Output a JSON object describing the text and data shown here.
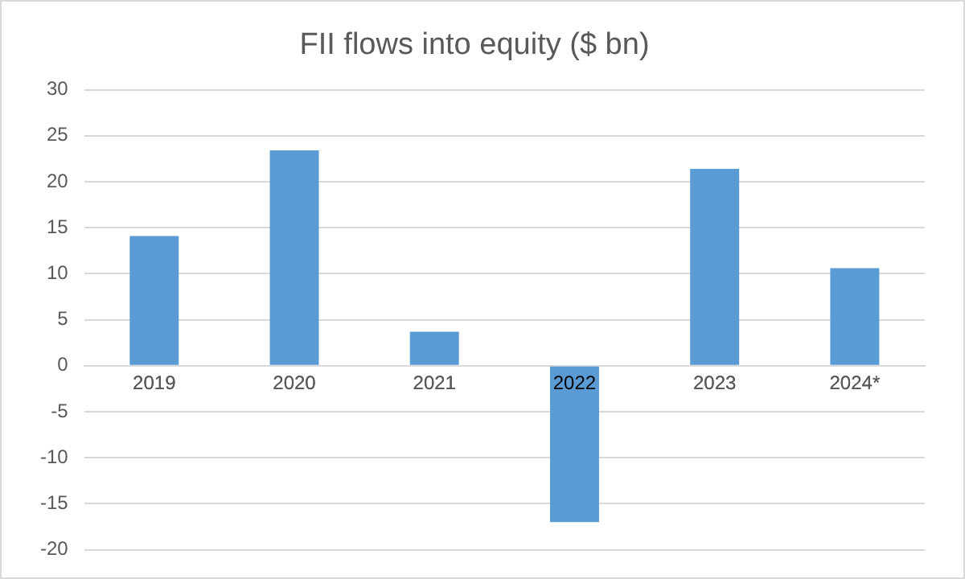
{
  "chart_data": {
    "type": "bar",
    "title": "FII flows into equity ($ bn)",
    "categories": [
      "2019",
      "2020",
      "2021",
      "2022",
      "2023",
      "2024*"
    ],
    "values": [
      14.1,
      23.4,
      3.7,
      -17,
      21.4,
      10.6
    ],
    "color": "#5b9bd5",
    "ylim": [
      -20,
      30
    ],
    "yticks": [
      -20,
      -15,
      -10,
      -5,
      0,
      5,
      10,
      15,
      20,
      25,
      30
    ],
    "grid": "y",
    "legend": false
  }
}
